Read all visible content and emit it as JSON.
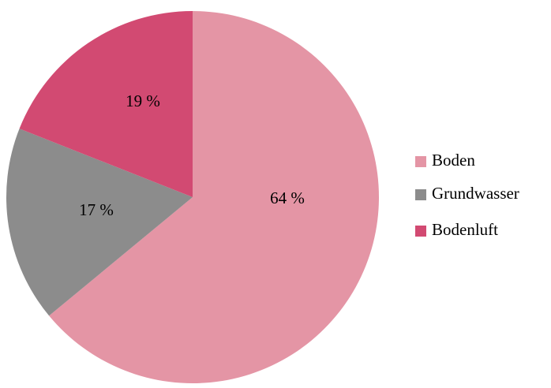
{
  "chart_data": {
    "type": "pie",
    "categories": [
      "Boden",
      "Grundwasser",
      "Bodenluft"
    ],
    "values": [
      64,
      17,
      19
    ],
    "value_labels": [
      "64 %",
      "17 %",
      "19 %"
    ],
    "colors": [
      "#e495a5",
      "#8c8c8c",
      "#d24a72"
    ],
    "legend": "right"
  }
}
